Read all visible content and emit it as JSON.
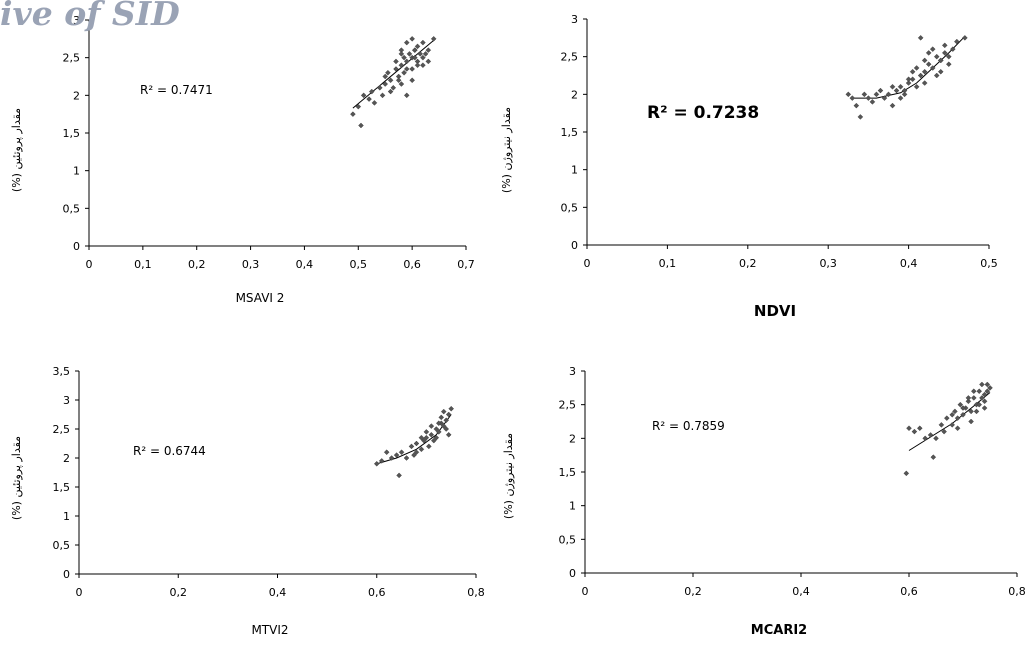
{
  "watermark": "ive of SID",
  "chart_data": [
    {
      "type": "scatter",
      "xlabel": "MSAVI 2",
      "ylabel": "مقدار پروتئین (%)",
      "r2": "R² = 0.7471",
      "xticks": [
        "0",
        "0,1",
        "0,2",
        "0,3",
        "0,4",
        "0,5",
        "0,6",
        "0,7"
      ],
      "yticks": [
        "0",
        "0,5",
        "1",
        "1,5",
        "2",
        "2,5",
        "3"
      ],
      "xlim": [
        0,
        0.7
      ],
      "ylim": [
        0,
        3
      ],
      "x": [
        0.49,
        0.5,
        0.505,
        0.51,
        0.52,
        0.525,
        0.53,
        0.54,
        0.545,
        0.55,
        0.555,
        0.56,
        0.565,
        0.57,
        0.575,
        0.58,
        0.58,
        0.585,
        0.59,
        0.59,
        0.595,
        0.6,
        0.6,
        0.605,
        0.61,
        0.615,
        0.62,
        0.625,
        0.63,
        0.64,
        0.56,
        0.57,
        0.575,
        0.585,
        0.59,
        0.6,
        0.605,
        0.61,
        0.62,
        0.63,
        0.55,
        0.58,
        0.6,
        0.61,
        0.58,
        0.59,
        0.605,
        0.62
      ],
      "y": [
        1.75,
        1.85,
        1.6,
        2.0,
        1.95,
        2.05,
        1.9,
        2.1,
        2.0,
        2.15,
        2.3,
        2.2,
        2.1,
        2.35,
        2.25,
        2.4,
        2.6,
        2.5,
        2.45,
        2.7,
        2.55,
        2.5,
        2.75,
        2.6,
        2.45,
        2.55,
        2.7,
        2.55,
        2.6,
        2.75,
        2.05,
        2.45,
        2.2,
        2.3,
        2.0,
        2.35,
        2.5,
        2.65,
        2.4,
        2.45,
        2.25,
        2.15,
        2.2,
        2.4,
        2.55,
        2.35,
        2.6,
        2.5
      ],
      "trend": {
        "from": [
          0.49,
          1.83
        ],
        "to": [
          0.64,
          2.73
        ]
      }
    },
    {
      "type": "scatter",
      "xlabel": "NDVI",
      "ylabel": "مقدار نیتروژن (%)",
      "r2": "R² = 0.7238",
      "xticks": [
        "0",
        "0,1",
        "0,2",
        "0,3",
        "0,4",
        "0,5"
      ],
      "yticks": [
        "0",
        "0,5",
        "1",
        "1,5",
        "2",
        "2,5",
        "3"
      ],
      "xlim": [
        0,
        0.5
      ],
      "ylim": [
        0,
        3
      ],
      "x": [
        0.325,
        0.33,
        0.335,
        0.34,
        0.345,
        0.35,
        0.355,
        0.36,
        0.365,
        0.37,
        0.375,
        0.38,
        0.385,
        0.39,
        0.395,
        0.4,
        0.405,
        0.41,
        0.415,
        0.42,
        0.425,
        0.43,
        0.435,
        0.44,
        0.445,
        0.45,
        0.455,
        0.46,
        0.47,
        0.38,
        0.39,
        0.4,
        0.41,
        0.42,
        0.43,
        0.44,
        0.45,
        0.415,
        0.425,
        0.435,
        0.445,
        0.395,
        0.405,
        0.42,
        0.44
      ],
      "y": [
        2.0,
        1.95,
        1.85,
        1.7,
        2.0,
        1.95,
        1.9,
        2.0,
        2.05,
        1.95,
        2.0,
        1.85,
        2.05,
        2.1,
        2.0,
        2.15,
        2.2,
        2.1,
        2.25,
        2.3,
        2.4,
        2.35,
        2.5,
        2.45,
        2.55,
        2.5,
        2.6,
        2.7,
        2.75,
        2.1,
        1.95,
        2.2,
        2.35,
        2.45,
        2.6,
        2.3,
        2.4,
        2.75,
        2.55,
        2.25,
        2.65,
        2.05,
        2.3,
        2.15,
        2.45
      ],
      "trend_pts": [
        [
          0.33,
          1.95
        ],
        [
          0.36,
          1.95
        ],
        [
          0.39,
          2.02
        ],
        [
          0.41,
          2.15
        ],
        [
          0.43,
          2.35
        ],
        [
          0.45,
          2.55
        ],
        [
          0.47,
          2.77
        ]
      ]
    },
    {
      "type": "scatter",
      "xlabel": "MTVI2",
      "ylabel": "مقدار پروتئین (%)",
      "r2": "R² = 0.6744",
      "xticks": [
        "0",
        "0,2",
        "0,4",
        "0,6",
        "0,8"
      ],
      "yticks": [
        "0",
        "0,5",
        "1",
        "1,5",
        "2",
        "2,5",
        "3",
        "3,5"
      ],
      "xlim": [
        0,
        0.8
      ],
      "ylim": [
        0,
        3.5
      ],
      "x": [
        0.6,
        0.61,
        0.62,
        0.63,
        0.64,
        0.645,
        0.65,
        0.66,
        0.67,
        0.675,
        0.68,
        0.69,
        0.695,
        0.7,
        0.705,
        0.71,
        0.715,
        0.72,
        0.725,
        0.73,
        0.735,
        0.74,
        0.745,
        0.75,
        0.68,
        0.7,
        0.72,
        0.73,
        0.74,
        0.71,
        0.725,
        0.745,
        0.69,
        0.735
      ],
      "y": [
        1.9,
        1.95,
        2.1,
        2.0,
        2.05,
        1.7,
        2.1,
        2.0,
        2.2,
        2.05,
        2.25,
        2.15,
        2.3,
        2.35,
        2.2,
        2.4,
        2.3,
        2.5,
        2.45,
        2.6,
        2.55,
        2.65,
        2.75,
        2.85,
        2.1,
        2.45,
        2.35,
        2.7,
        2.5,
        2.55,
        2.6,
        2.4,
        2.35,
        2.8
      ],
      "trend_pts": [
        [
          0.6,
          1.9
        ],
        [
          0.64,
          2.0
        ],
        [
          0.68,
          2.15
        ],
        [
          0.72,
          2.4
        ],
        [
          0.75,
          2.75
        ]
      ]
    },
    {
      "type": "scatter",
      "xlabel": "MCARI2",
      "ylabel": "مقدار نیتروژن (%)",
      "r2": "R² = 0.7859",
      "xticks": [
        "0",
        "0,2",
        "0,4",
        "0,6",
        "0,8"
      ],
      "yticks": [
        "0",
        "0,5",
        "1",
        "1,5",
        "2",
        "2,5",
        "3"
      ],
      "xlim": [
        0,
        0.8
      ],
      "ylim": [
        0,
        3
      ],
      "x": [
        0.595,
        0.6,
        0.61,
        0.62,
        0.63,
        0.64,
        0.645,
        0.65,
        0.66,
        0.665,
        0.67,
        0.68,
        0.685,
        0.69,
        0.695,
        0.7,
        0.705,
        0.71,
        0.715,
        0.72,
        0.725,
        0.73,
        0.735,
        0.74,
        0.745,
        0.75,
        0.68,
        0.7,
        0.72,
        0.73,
        0.74,
        0.71,
        0.725,
        0.745,
        0.69,
        0.735,
        0.715,
        0.74
      ],
      "y": [
        1.48,
        2.15,
        2.1,
        2.15,
        2.0,
        2.05,
        1.72,
        2.0,
        2.2,
        2.1,
        2.3,
        2.2,
        2.4,
        2.3,
        2.5,
        2.35,
        2.45,
        2.55,
        2.4,
        2.6,
        2.5,
        2.7,
        2.6,
        2.65,
        2.8,
        2.75,
        2.35,
        2.45,
        2.7,
        2.5,
        2.55,
        2.6,
        2.4,
        2.7,
        2.15,
        2.8,
        2.25,
        2.45
      ],
      "trend_pts": [
        [
          0.6,
          1.82
        ],
        [
          0.64,
          2.02
        ],
        [
          0.68,
          2.22
        ],
        [
          0.72,
          2.48
        ],
        [
          0.75,
          2.68
        ]
      ]
    }
  ]
}
